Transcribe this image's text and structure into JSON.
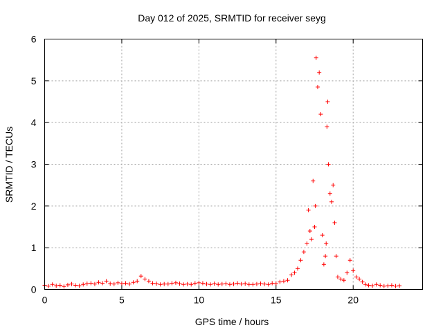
{
  "chart_data": {
    "type": "scatter",
    "title": "Day 012 of 2025, SRMTID for receiver seyg",
    "xlabel": "GPS time / hours",
    "ylabel": "SRMTID / TECUs",
    "xlim": [
      0,
      24.5
    ],
    "ylim": [
      0,
      6
    ],
    "xticks": [
      0,
      5,
      10,
      15,
      20
    ],
    "yticks": [
      0,
      1,
      2,
      3,
      4,
      5,
      6
    ],
    "grid": true,
    "marker": "+",
    "series": [
      {
        "name": "SRMTID",
        "color": "#ff0000",
        "x": [
          0.0,
          0.25,
          0.5,
          0.75,
          1.0,
          1.25,
          1.5,
          1.75,
          2.0,
          2.25,
          2.5,
          2.75,
          3.0,
          3.25,
          3.5,
          3.75,
          4.0,
          4.25,
          4.5,
          4.75,
          5.0,
          5.25,
          5.5,
          5.75,
          6.0,
          6.25,
          6.5,
          6.75,
          7.0,
          7.25,
          7.5,
          7.75,
          8.0,
          8.25,
          8.5,
          8.75,
          9.0,
          9.25,
          9.5,
          9.75,
          10.0,
          10.25,
          10.5,
          10.75,
          11.0,
          11.25,
          11.5,
          11.75,
          12.0,
          12.25,
          12.5,
          12.75,
          13.0,
          13.25,
          13.5,
          13.75,
          14.0,
          14.25,
          14.5,
          14.75,
          15.0,
          15.25,
          15.5,
          15.75,
          16.0,
          16.2,
          16.4,
          16.6,
          16.8,
          17.0,
          17.1,
          17.2,
          17.3,
          17.4,
          17.5,
          17.55,
          17.6,
          17.7,
          17.8,
          17.9,
          18.0,
          18.1,
          18.2,
          18.25,
          18.3,
          18.35,
          18.4,
          18.5,
          18.6,
          18.7,
          18.8,
          18.9,
          19.0,
          19.2,
          19.4,
          19.6,
          19.8,
          20.0,
          20.2,
          20.4,
          20.6,
          20.8,
          21.0,
          21.25,
          21.5,
          21.75,
          22.0,
          22.25,
          22.5,
          22.75,
          23.0
        ],
        "y": [
          0.1,
          0.08,
          0.12,
          0.09,
          0.1,
          0.07,
          0.11,
          0.13,
          0.1,
          0.09,
          0.12,
          0.14,
          0.15,
          0.13,
          0.17,
          0.15,
          0.2,
          0.14,
          0.13,
          0.16,
          0.14,
          0.15,
          0.13,
          0.17,
          0.2,
          0.32,
          0.25,
          0.2,
          0.15,
          0.14,
          0.12,
          0.13,
          0.13,
          0.15,
          0.16,
          0.14,
          0.12,
          0.13,
          0.12,
          0.15,
          0.16,
          0.15,
          0.13,
          0.12,
          0.14,
          0.12,
          0.13,
          0.14,
          0.12,
          0.13,
          0.15,
          0.13,
          0.14,
          0.12,
          0.12,
          0.13,
          0.14,
          0.13,
          0.12,
          0.15,
          0.14,
          0.18,
          0.2,
          0.22,
          0.35,
          0.4,
          0.5,
          0.7,
          0.9,
          1.1,
          1.9,
          1.4,
          1.2,
          2.6,
          1.5,
          2.0,
          5.55,
          4.85,
          5.2,
          4.2,
          1.3,
          0.6,
          0.8,
          1.1,
          3.9,
          4.5,
          3.0,
          2.3,
          2.1,
          2.5,
          1.6,
          0.8,
          0.3,
          0.25,
          0.22,
          0.4,
          0.7,
          0.45,
          0.3,
          0.25,
          0.18,
          0.12,
          0.1,
          0.09,
          0.12,
          0.1,
          0.08,
          0.09,
          0.1,
          0.08,
          0.09
        ]
      }
    ]
  }
}
